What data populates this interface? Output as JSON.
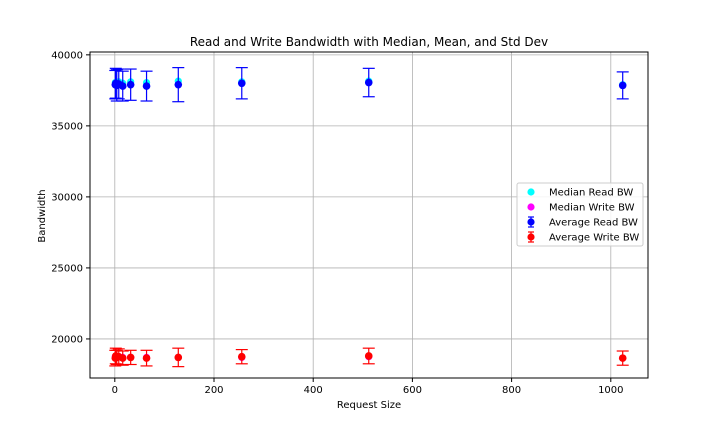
{
  "chart_data": {
    "type": "scatter",
    "title": "Read and Write Bandwidth with Median, Mean, and Std Dev",
    "xlabel": "Request Size",
    "ylabel": "Bandwidth",
    "xlim": [
      -50,
      1075
    ],
    "ylim": [
      17250,
      40200
    ],
    "x_ticks": [
      0,
      200,
      400,
      600,
      800,
      1000
    ],
    "y_ticks": [
      20000,
      25000,
      30000,
      35000,
      40000
    ],
    "grid": true,
    "legend_position": "center-right",
    "x": [
      1,
      2,
      4,
      8,
      16,
      32,
      64,
      128,
      256,
      512,
      1024
    ],
    "series": [
      {
        "name": "Median Read BW",
        "kind": "median",
        "color": "#00ffff",
        "values": [
          38050,
          37950,
          38000,
          38100,
          38000,
          38100,
          38050,
          38150,
          38100,
          38150,
          37900
        ]
      },
      {
        "name": "Median Write BW",
        "kind": "median",
        "color": "#ff00ff",
        "values": [
          18750,
          18700,
          18750,
          18750,
          18700,
          18700,
          18700,
          18700,
          18700,
          18750,
          18650
        ]
      },
      {
        "name": "Average Read BW",
        "kind": "errorbar",
        "color": "#0000ff",
        "values": [
          37900,
          38000,
          37850,
          37950,
          37800,
          37900,
          37800,
          37900,
          38000,
          38050,
          37850
        ],
        "std": [
          1000,
          1050,
          1100,
          1050,
          1050,
          1100,
          1050,
          1200,
          1100,
          1000,
          950
        ]
      },
      {
        "name": "Average Write BW",
        "kind": "errorbar",
        "color": "#ff0000",
        "values": [
          18650,
          18800,
          18700,
          18750,
          18650,
          18700,
          18650,
          18700,
          18750,
          18800,
          18650
        ],
        "std": [
          550,
          550,
          500,
          550,
          500,
          500,
          550,
          650,
          500,
          550,
          500
        ]
      }
    ]
  }
}
